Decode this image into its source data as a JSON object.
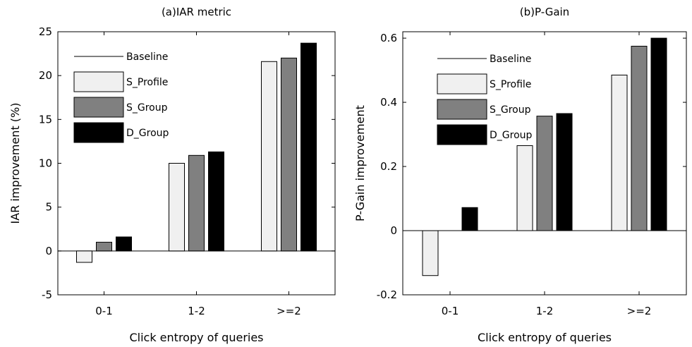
{
  "chart_data": [
    {
      "type": "bar",
      "title": "(a)IAR metric",
      "xlabel": "Click entropy of queries",
      "ylabel": "IAR improvement (%)",
      "categories": [
        "0-1",
        "1-2",
        ">=2"
      ],
      "ylim": [
        -5,
        25
      ],
      "yticks": [
        -5,
        0,
        5,
        10,
        15,
        20,
        25
      ],
      "legend_position": "top-left",
      "baseline": {
        "name": "Baseline",
        "value": 0
      },
      "series": [
        {
          "name": "S_Profile",
          "color": "#f0f0f0",
          "values": [
            -1.3,
            10.0,
            21.6
          ]
        },
        {
          "name": "S_Group",
          "color": "#808080",
          "values": [
            1.0,
            10.9,
            22.0
          ]
        },
        {
          "name": "D_Group",
          "color": "#000000",
          "values": [
            1.6,
            11.3,
            23.7
          ]
        }
      ]
    },
    {
      "type": "bar",
      "title": "(b)P-Gain",
      "xlabel": "Click entropy of queries",
      "ylabel": "P-Gain improvement",
      "categories": [
        "0-1",
        "1-2",
        ">=2"
      ],
      "ylim": [
        -0.2,
        0.62
      ],
      "yticks": [
        "-0.2",
        "0",
        "0.2",
        "0.4",
        "0.6"
      ],
      "legend_position": "top-left",
      "baseline": {
        "name": "Baseline",
        "value": 0
      },
      "series": [
        {
          "name": "S_Profile",
          "color": "#f0f0f0",
          "values": [
            -0.14,
            0.265,
            0.485
          ]
        },
        {
          "name": "S_Group",
          "color": "#808080",
          "values": [
            0,
            0.357,
            0.575
          ]
        },
        {
          "name": "D_Group",
          "color": "#000000",
          "values": [
            0.072,
            0.365,
            0.6
          ]
        }
      ]
    }
  ]
}
